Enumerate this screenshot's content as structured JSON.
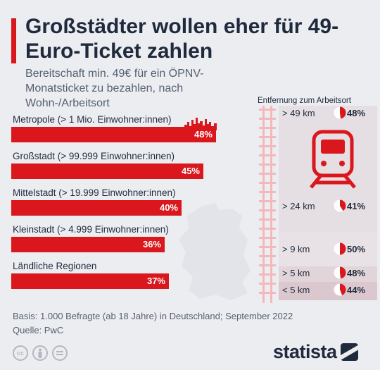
{
  "title": "Großstädter wollen eher für 49-Euro-Ticket zahlen",
  "subtitle": "Bereitschaft min. 49€ für ein ÖPNV-Monatsticket zu bezahlen, nach Wohn-/Arbeitsort",
  "colors": {
    "accent": "#d9171d",
    "text": "#1f2a3d",
    "muted": "#556070",
    "background": "#ecedf1"
  },
  "chart_data": [
    {
      "type": "bar",
      "orientation": "horizontal",
      "categories": [
        "Metropole (> 1 Mio. Einwohner:innen)",
        "Großstadt (> 99.999 Einwohner:innen)",
        "Mittelstadt (> 19.999 Einwohner:innen)",
        "Kleinstadt (> 4.999 Einwohner:innen)",
        "Ländliche Regionen"
      ],
      "values": [
        48,
        45,
        40,
        36,
        37
      ],
      "value_labels": [
        "48%",
        "45%",
        "40%",
        "36%",
        "37%"
      ],
      "unit": "%"
    },
    {
      "type": "pie",
      "title": "Entfernung zum Arbeitsort",
      "categories": [
        "> 49 km",
        "> 24 km",
        "> 9 km",
        "> 5 km",
        "< 5 km"
      ],
      "values": [
        48,
        41,
        50,
        48,
        44
      ],
      "value_labels": [
        "48%",
        "41%",
        "50%",
        "48%",
        "44%"
      ],
      "unit": "%"
    }
  ],
  "footer": {
    "basis": "Basis: 1.000 Befragte (ab 18 Jahre) in Deutschland; September 2022",
    "source": "Quelle: PwC"
  },
  "license_icons": [
    "cc",
    "by",
    "nd"
  ],
  "brand": "statista"
}
